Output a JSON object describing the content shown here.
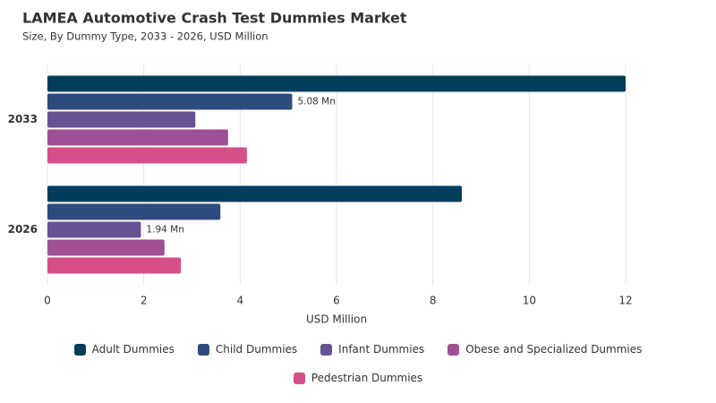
{
  "chart_data": {
    "type": "hbar",
    "title": "LAMEA Automotive Crash Test Dummies Market",
    "subtitle": "Size, By Dummy Type, 2033 - 2026, USD Million",
    "x_label": "USD Million",
    "categories": [
      "2033",
      "2026"
    ],
    "series": [
      {
        "name": "Adult Dummies",
        "color": "#023e5c",
        "values": [
          12.0,
          8.6
        ]
      },
      {
        "name": "Child Dummies",
        "color": "#2e4b7d",
        "values": [
          5.08,
          3.59
        ],
        "value_labels": [
          "5.08 Mn",
          null
        ]
      },
      {
        "name": "Infant Dummies",
        "color": "#665193",
        "values": [
          3.07,
          1.94
        ],
        "value_labels": [
          null,
          "1.94 Mn"
        ]
      },
      {
        "name": "Obese and Specialized Dummies",
        "color": "#a05196",
        "values": [
          3.75,
          2.43
        ]
      },
      {
        "name": "Pedestrian Dummies",
        "color": "#d55088",
        "values": [
          4.14,
          2.77
        ]
      }
    ],
    "xlim": [
      0,
      12
    ],
    "xticks": [
      0,
      2,
      4,
      6,
      8,
      10,
      12
    ],
    "grid": true
  }
}
